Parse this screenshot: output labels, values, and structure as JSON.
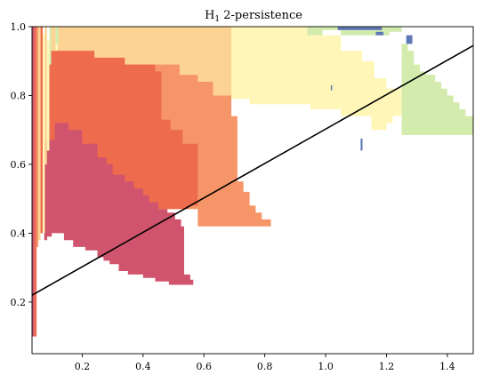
{
  "chart_data": {
    "type": "heatmap",
    "title_main": "H",
    "title_sub": "1",
    "title_rest": " 2-persistence",
    "xlim": [
      0.035,
      1.485
    ],
    "ylim": [
      0.05,
      1.0
    ],
    "xticks": [
      "0.2",
      "0.4",
      "0.6",
      "0.8",
      "1.0",
      "1.2",
      "1.4"
    ],
    "yticks": [
      "0.2",
      "0.4",
      "0.6",
      "0.8",
      "1.0"
    ],
    "grid": false,
    "line": {
      "x": [
        0.035,
        1.485
      ],
      "y": [
        0.22,
        0.945
      ],
      "color": "#000000"
    },
    "colors": {
      "crimson": "#d0546d",
      "red": "#ee6b4d",
      "orange": "#f69668",
      "light_orange": "#fdd394",
      "pale_yellow": "#fff6b8",
      "green": "#d3ecad",
      "blue": "#5e78b5"
    },
    "regions": [
      {
        "name": "pale-yellow-region",
        "color": "pale_yellow",
        "polygon": [
          [
            0.1,
            1.0
          ],
          [
            0.95,
            1.0
          ],
          [
            0.95,
            0.975
          ],
          [
            1.05,
            0.975
          ],
          [
            1.05,
            0.93
          ],
          [
            1.12,
            0.93
          ],
          [
            1.12,
            0.9
          ],
          [
            1.16,
            0.9
          ],
          [
            1.16,
            0.85
          ],
          [
            1.2,
            0.85
          ],
          [
            1.2,
            0.82
          ],
          [
            1.25,
            0.82
          ],
          [
            1.25,
            0.74
          ],
          [
            1.22,
            0.74
          ],
          [
            1.22,
            0.72
          ],
          [
            1.2,
            0.72
          ],
          [
            1.2,
            0.7
          ],
          [
            1.15,
            0.7
          ],
          [
            1.15,
            0.74
          ],
          [
            1.05,
            0.74
          ],
          [
            1.05,
            0.76
          ],
          [
            0.95,
            0.76
          ],
          [
            0.95,
            0.775
          ],
          [
            0.75,
            0.775
          ],
          [
            0.75,
            0.79
          ],
          [
            0.5,
            0.79
          ],
          [
            0.5,
            0.6
          ],
          [
            0.1,
            0.6
          ]
        ]
      },
      {
        "name": "green-right-region",
        "color": "green",
        "polygon": [
          [
            1.25,
            0.95
          ],
          [
            1.27,
            0.95
          ],
          [
            1.27,
            0.93
          ],
          [
            1.29,
            0.93
          ],
          [
            1.29,
            0.89
          ],
          [
            1.31,
            0.89
          ],
          [
            1.31,
            0.87
          ],
          [
            1.33,
            0.87
          ],
          [
            1.33,
            0.86
          ],
          [
            1.36,
            0.86
          ],
          [
            1.36,
            0.84
          ],
          [
            1.38,
            0.84
          ],
          [
            1.38,
            0.82
          ],
          [
            1.4,
            0.82
          ],
          [
            1.4,
            0.8
          ],
          [
            1.42,
            0.8
          ],
          [
            1.42,
            0.78
          ],
          [
            1.44,
            0.78
          ],
          [
            1.44,
            0.76
          ],
          [
            1.46,
            0.76
          ],
          [
            1.46,
            0.74
          ],
          [
            1.48,
            0.74
          ],
          [
            1.485,
            0.74
          ],
          [
            1.485,
            0.685
          ],
          [
            1.25,
            0.685
          ]
        ]
      },
      {
        "name": "green-top-region",
        "color": "green",
        "polygon": [
          [
            0.94,
            1.0
          ],
          [
            1.25,
            1.0
          ],
          [
            1.25,
            0.985
          ],
          [
            1.21,
            0.985
          ],
          [
            1.21,
            0.975
          ],
          [
            1.05,
            0.975
          ],
          [
            1.05,
            0.99
          ],
          [
            0.99,
            0.99
          ],
          [
            0.99,
            0.975
          ],
          [
            0.94,
            0.975
          ]
        ]
      },
      {
        "name": "light-orange-region",
        "color": "light_orange",
        "polygon": [
          [
            0.12,
            1.0
          ],
          [
            0.69,
            1.0
          ],
          [
            0.69,
            0.8
          ],
          [
            0.6,
            0.8
          ],
          [
            0.6,
            0.63
          ],
          [
            0.12,
            0.63
          ]
        ]
      },
      {
        "name": "orange-region",
        "color": "orange",
        "polygon": [
          [
            0.34,
            0.89
          ],
          [
            0.52,
            0.89
          ],
          [
            0.52,
            0.86
          ],
          [
            0.58,
            0.86
          ],
          [
            0.58,
            0.84
          ],
          [
            0.63,
            0.84
          ],
          [
            0.63,
            0.8
          ],
          [
            0.69,
            0.8
          ],
          [
            0.69,
            0.74
          ],
          [
            0.71,
            0.74
          ],
          [
            0.71,
            0.55
          ],
          [
            0.73,
            0.55
          ],
          [
            0.73,
            0.52
          ],
          [
            0.75,
            0.52
          ],
          [
            0.75,
            0.48
          ],
          [
            0.77,
            0.48
          ],
          [
            0.77,
            0.46
          ],
          [
            0.79,
            0.46
          ],
          [
            0.79,
            0.44
          ],
          [
            0.82,
            0.44
          ],
          [
            0.82,
            0.42
          ],
          [
            0.58,
            0.42
          ],
          [
            0.58,
            0.47
          ],
          [
            0.34,
            0.47
          ]
        ]
      },
      {
        "name": "red-region",
        "color": "red",
        "polygon": [
          [
            0.09,
            0.93
          ],
          [
            0.24,
            0.93
          ],
          [
            0.24,
            0.91
          ],
          [
            0.34,
            0.91
          ],
          [
            0.34,
            0.89
          ],
          [
            0.44,
            0.89
          ],
          [
            0.44,
            0.87
          ],
          [
            0.46,
            0.87
          ],
          [
            0.46,
            0.73
          ],
          [
            0.49,
            0.73
          ],
          [
            0.49,
            0.7
          ],
          [
            0.53,
            0.7
          ],
          [
            0.53,
            0.66
          ],
          [
            0.58,
            0.66
          ],
          [
            0.58,
            0.48
          ],
          [
            0.55,
            0.48
          ],
          [
            0.55,
            0.47
          ],
          [
            0.34,
            0.47
          ],
          [
            0.34,
            0.42
          ],
          [
            0.09,
            0.42
          ]
        ]
      },
      {
        "name": "crimson-region",
        "color": "crimson",
        "polygon": [
          [
            0.075,
            0.67
          ],
          [
            0.11,
            0.67
          ],
          [
            0.11,
            0.72
          ],
          [
            0.155,
            0.72
          ],
          [
            0.155,
            0.7
          ],
          [
            0.2,
            0.7
          ],
          [
            0.2,
            0.66
          ],
          [
            0.25,
            0.66
          ],
          [
            0.25,
            0.62
          ],
          [
            0.28,
            0.62
          ],
          [
            0.28,
            0.6
          ],
          [
            0.3,
            0.6
          ],
          [
            0.3,
            0.57
          ],
          [
            0.34,
            0.57
          ],
          [
            0.34,
            0.55
          ],
          [
            0.37,
            0.55
          ],
          [
            0.37,
            0.53
          ],
          [
            0.4,
            0.53
          ],
          [
            0.4,
            0.51
          ],
          [
            0.42,
            0.51
          ],
          [
            0.42,
            0.49
          ],
          [
            0.45,
            0.49
          ],
          [
            0.45,
            0.47
          ],
          [
            0.48,
            0.47
          ],
          [
            0.48,
            0.46
          ],
          [
            0.505,
            0.46
          ],
          [
            0.505,
            0.44
          ],
          [
            0.525,
            0.44
          ],
          [
            0.525,
            0.42
          ],
          [
            0.535,
            0.42
          ],
          [
            0.535,
            0.28
          ],
          [
            0.555,
            0.28
          ],
          [
            0.555,
            0.265
          ],
          [
            0.565,
            0.265
          ],
          [
            0.565,
            0.25
          ],
          [
            0.485,
            0.25
          ],
          [
            0.485,
            0.26
          ],
          [
            0.44,
            0.26
          ],
          [
            0.44,
            0.27
          ],
          [
            0.4,
            0.27
          ],
          [
            0.4,
            0.28
          ],
          [
            0.35,
            0.28
          ],
          [
            0.35,
            0.29
          ],
          [
            0.32,
            0.29
          ],
          [
            0.32,
            0.31
          ],
          [
            0.29,
            0.31
          ],
          [
            0.29,
            0.32
          ],
          [
            0.27,
            0.32
          ],
          [
            0.27,
            0.33
          ],
          [
            0.25,
            0.33
          ],
          [
            0.25,
            0.35
          ],
          [
            0.21,
            0.35
          ],
          [
            0.21,
            0.36
          ],
          [
            0.17,
            0.36
          ],
          [
            0.17,
            0.38
          ],
          [
            0.14,
            0.38
          ],
          [
            0.14,
            0.4
          ],
          [
            0.1,
            0.4
          ],
          [
            0.1,
            0.39
          ],
          [
            0.085,
            0.39
          ],
          [
            0.085,
            0.38
          ],
          [
            0.075,
            0.38
          ]
        ]
      }
    ],
    "strips": [
      {
        "x0": 0.035,
        "x1": 0.043,
        "y0": 0.1,
        "y1": 1.0,
        "color": "crimson"
      },
      {
        "x0": 0.043,
        "x1": 0.05,
        "y0": 0.1,
        "y1": 1.0,
        "color": "red"
      },
      {
        "x0": 0.05,
        "x1": 0.056,
        "y0": 0.36,
        "y1": 1.0,
        "color": "orange"
      },
      {
        "x0": 0.056,
        "x1": 0.063,
        "y0": 0.38,
        "y1": 1.0,
        "color": "light_orange"
      },
      {
        "x0": 0.063,
        "x1": 0.07,
        "y0": 0.4,
        "y1": 1.0,
        "color": "red"
      },
      {
        "x0": 0.07,
        "x1": 0.077,
        "y0": 0.4,
        "y1": 0.98,
        "color": "pale_yellow"
      },
      {
        "x0": 0.077,
        "x1": 0.084,
        "y0": 0.6,
        "y1": 1.0,
        "color": "light_orange"
      },
      {
        "x0": 0.084,
        "x1": 0.092,
        "y0": 0.64,
        "y1": 0.96,
        "color": "pale_yellow"
      },
      {
        "x0": 0.092,
        "x1": 0.098,
        "y0": 0.89,
        "y1": 1.0,
        "color": "green"
      },
      {
        "x0": 0.098,
        "x1": 0.112,
        "y0": 0.93,
        "y1": 1.0,
        "color": "light_orange"
      },
      {
        "x0": 0.112,
        "x1": 0.122,
        "y0": 0.95,
        "y1": 1.0,
        "color": "green"
      }
    ],
    "blue_marks": [
      {
        "x0": 1.04,
        "x1": 1.185,
        "y0": 0.99,
        "y1": 0.999
      },
      {
        "x0": 1.165,
        "x1": 1.19,
        "y0": 0.975,
        "y1": 0.985
      },
      {
        "x0": 1.265,
        "x1": 1.285,
        "y0": 0.95,
        "y1": 0.975
      },
      {
        "x0": 1.115,
        "x1": 1.121,
        "y0": 0.64,
        "y1": 0.675
      },
      {
        "x0": 1.017,
        "x1": 1.021,
        "y0": 0.815,
        "y1": 0.83
      }
    ]
  }
}
